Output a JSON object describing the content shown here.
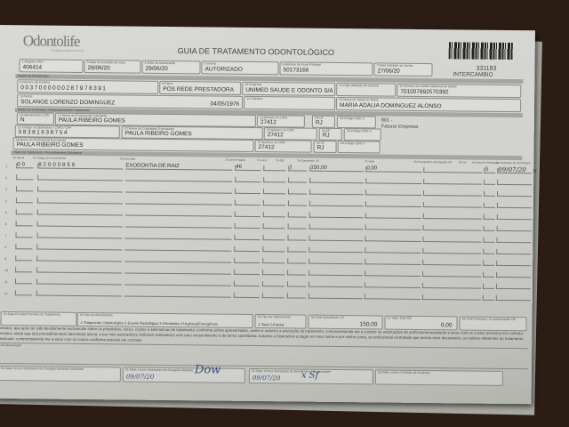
{
  "header": {
    "logo": "Odontolife",
    "logo_tagline": "Inteligência para você sorrir",
    "title": "GUIA DE TRATAMENTO ODONTOLÓGICO",
    "guide_number": "331183",
    "guide_type": "INTERCAMBIO"
  },
  "row1": [
    {
      "label": "1-Registro ANS",
      "value": "406414"
    },
    {
      "label": "3-Data de Emissão da Guia",
      "value": "28/06/20"
    },
    {
      "label": "4-Data da Autorização",
      "value": "29/06/20"
    },
    {
      "label": "5-Senha",
      "value": "AUTORIZADO"
    },
    {
      "label": "6-Número da Guia Principal",
      "value": "50173166"
    },
    {
      "label": "7-Data Validade da Senha",
      "value": "27/06/20"
    }
  ],
  "sections": {
    "beneficiary": "Dados do Beneficiário",
    "contracted": "Dados do Contratado Responsável pelo Tratamento",
    "plan": "Plano de Tratamento / Procedimentos Solicitados"
  },
  "beneficiary": {
    "card_label": "8-Número da Carteira",
    "card": "0037000000287978391",
    "plan_label": "9-Plano",
    "plan": "POS REDE PRESTADORA",
    "company_label": "10-Empresa",
    "company": "UNIMED SAUDE E ODONTO S/A",
    "card_validity_label": "11-Data Validade da Carteira",
    "card_validity": "",
    "cns_label": "12-Número do Cartão Nacional de Saúde",
    "cns": "701007892570392",
    "name_label": "13-Nome",
    "name": "SOLANGE LORENZO DOMINGUEZ",
    "birth": "04/05/1976",
    "phone_label": "14-Telefone",
    "phone": "",
    "holder_label": "15-Nome do Titular do Plano",
    "holder": "MARIA ADALIA DOMINGUEZ ALONSO"
  },
  "contracted": {
    "rn_label": "16-Atendimento a RN",
    "rn": "N",
    "requester_label": "17-Nome do Profissional Solicitante",
    "requester": "PAULA RIBEIRO GOMES",
    "cro1_label": "18-Número no CRO",
    "cro1": "27412",
    "uf1_label": "19-UF",
    "uf1": "RJ",
    "cbo1_label": "20-Código CBO S",
    "cbo1": "",
    "billing_code": "801 -",
    "billing_text": "Faturar Empresa",
    "op_code_label": "21-Código na Operadora / CNPJ / CPF",
    "op_code": "08381638754",
    "exec_name_label": "22-Nome do Contratado Executante",
    "exec_name": "PAULA RIBEIRO GOMES",
    "cro2_label": "23-Número no CRO",
    "cro2": "27412",
    "uf2_label": "24-UF",
    "uf2": "RJ",
    "cbo2_label": "25-Código CBO S",
    "cbo2": "",
    "exec_prof_label": "26-Nome do Profissional Executante",
    "exec_prof": "PAULA RIBEIRO GOMES",
    "cro3_label": "27-Número no CRO",
    "cro3": "27412",
    "uf3_label": "28-UF",
    "uf3": "RJ",
    "cbo3_label": "29-Código CBO S",
    "cbo3": ""
  },
  "procedures": {
    "headers": [
      "30-Tabela",
      "31-Código do Procedimento",
      "32-Descrição",
      "33-Dente/Região",
      "34-Face",
      "35-Qtd",
      "36-Quantidade US",
      "37-Valor",
      "38-Franquia/Co-participação R$",
      "39-Aut",
      "40-Data de Realização",
      "41-Assinatura do Beneficiário"
    ],
    "rows": [
      {
        "n": "1",
        "table": "00",
        "code": "82000859",
        "desc": "EXODONTIA DE RAIZ",
        "tooth": "46",
        "face": "",
        "qty": "1",
        "us": "150,00",
        "value": "0,00",
        "copay": "",
        "aut": "S",
        "date": "09/07/20",
        "sign": "x"
      },
      {
        "n": "2"
      },
      {
        "n": "3"
      },
      {
        "n": "4"
      },
      {
        "n": "5"
      },
      {
        "n": "6"
      },
      {
        "n": "7"
      },
      {
        "n": "8"
      },
      {
        "n": "9"
      },
      {
        "n": "10"
      },
      {
        "n": "11"
      },
      {
        "n": "12"
      }
    ]
  },
  "totals": {
    "end_date_label": "42-Data Provável Término do Tratamento",
    "end_date": "",
    "service_type_label": "43-Tipo de Atendimento",
    "service_type_options": "1-Tratamento Odontológico 2-Exame Radiológico 3-Ortodontia 4-Urgência/Emergência",
    "billing_type_label": "45-Tipo de Faturamento",
    "billing_type_options": "1-Total 2-Parcial",
    "total_us_label": "46-Total Quantidade US",
    "total_us": "150,00",
    "total_value_label": "47-Valor Total R$",
    "total_value": "0,00",
    "total_copay_label": "48-Total Franquia / Co-participação R$",
    "total_copay": ""
  },
  "declaration": "Declaro, que após ter sido devidamente esclarecido sobre os propósitos, riscos, custos e alternativas de tratamento, conforme acima apresentados, aceito e autorizo a execução do tratamento, comprometendo-me a cumprir as orientações do profissional assistente e arcar com os custos previstos em contrato. Declaro, ainda que o(s) procedimento(s) descrito(s) acima, e por mim assinado(s), foi/foram realizado(s) com meu consentimento e de forma satisfatória. Autorizo a Operadora a pagar em meu nome e por minha conta, ao profissional contratado que assina esse documento, os valores referentes ao tratamento realizado, comprometendo-me a arcar com os custos conforme previsto em contrato.",
  "observation_label": "49-Observação",
  "signatures": [
    {
      "label": "50-Data, local e Assinatura do Cirurgião-Dentista Solicitante",
      "value": ""
    },
    {
      "label": "51-Data, local e Assinatura do Cirurgião-Dentista",
      "value": "09/07/20"
    },
    {
      "label": "52-Data, local e Assinatura do Beneficiário / Responsável",
      "value": "09/07/20"
    },
    {
      "label": "53-Data, local e Carimbo da Empresa",
      "value": ""
    }
  ]
}
